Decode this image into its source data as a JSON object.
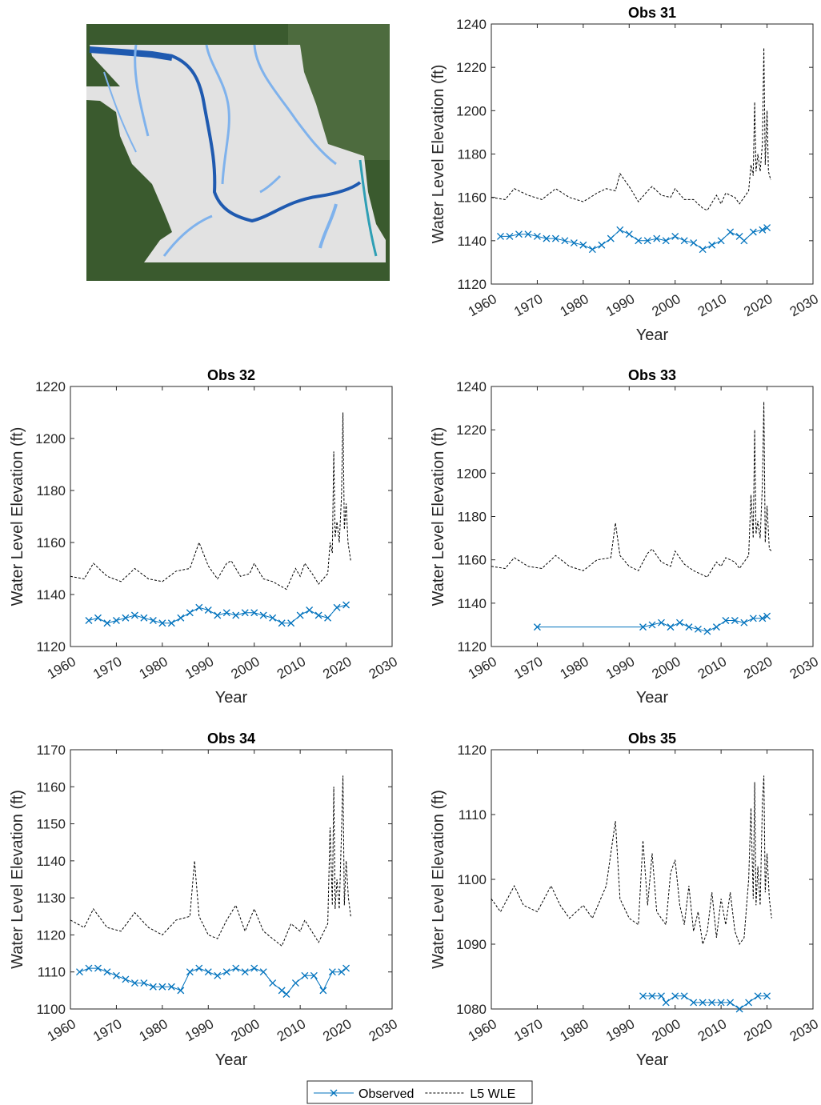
{
  "chart_data": [
    {
      "type": "line",
      "title": "Obs 31",
      "x_label": "Year",
      "y_label": "Water Level Elevation (ft)",
      "xlim": [
        1960,
        2030
      ],
      "xticks": [
        1960,
        1970,
        1980,
        1990,
        2000,
        2010,
        2020,
        2030
      ],
      "ylim": [
        1120,
        1240
      ],
      "yticks": [
        1120,
        1140,
        1160,
        1180,
        1200,
        1220,
        1240
      ],
      "series": [
        {
          "name": "Observed",
          "color": "#0072bd",
          "linestyle": "solid",
          "marker": "x",
          "x": [
            1962,
            1964,
            1966,
            1968,
            1970,
            1972,
            1974,
            1976,
            1978,
            1980,
            1982,
            1984,
            1986,
            1988,
            1990,
            1992,
            1994,
            1996,
            1998,
            2000,
            2002,
            2004,
            2006,
            2008,
            2010,
            2012,
            2014,
            2015,
            2017,
            2019,
            2020
          ],
          "values": [
            1142,
            1142,
            1143,
            1143,
            1142,
            1141,
            1141,
            1140,
            1139,
            1138,
            1136,
            1138,
            1141,
            1145,
            1143,
            1140,
            1140,
            1141,
            1140,
            1142,
            1140,
            1139,
            1136,
            1138,
            1140,
            1144,
            1142,
            1140,
            1144,
            1145,
            1146
          ]
        },
        {
          "name": "L5 WLE",
          "color": "#000000",
          "linestyle": "dashed",
          "marker": "none",
          "x": [
            1960,
            1963,
            1965,
            1968,
            1971,
            1974,
            1977,
            1980,
            1983,
            1985,
            1987,
            1988,
            1990,
            1992,
            1994,
            1995,
            1997,
            1999,
            2000,
            2002,
            2004,
            2006,
            2007,
            2009,
            2010,
            2011,
            2013,
            2014,
            2016,
            2016.5,
            2017,
            2017.3,
            2017.6,
            2018,
            2018.5,
            2019,
            2019.3,
            2019.6,
            2020,
            2020.3,
            2020.8
          ],
          "values": [
            1160,
            1159,
            1164,
            1161,
            1159,
            1164,
            1160,
            1158,
            1162,
            1164,
            1163,
            1171,
            1165,
            1158,
            1163,
            1165,
            1161,
            1160,
            1164,
            1159,
            1159,
            1155,
            1154,
            1161,
            1157,
            1162,
            1160,
            1157,
            1163,
            1175,
            1170,
            1204,
            1172,
            1180,
            1172,
            1185,
            1229,
            1175,
            1200,
            1172,
            1168
          ]
        }
      ]
    },
    {
      "type": "line",
      "title": "Obs 32",
      "x_label": "Year",
      "y_label": "Water Level Elevation (ft)",
      "xlim": [
        1960,
        2030
      ],
      "xticks": [
        1960,
        1970,
        1980,
        1990,
        2000,
        2010,
        2020,
        2030
      ],
      "ylim": [
        1120,
        1220
      ],
      "yticks": [
        1120,
        1140,
        1160,
        1180,
        1200,
        1220
      ],
      "series": [
        {
          "name": "Observed",
          "color": "#0072bd",
          "linestyle": "solid",
          "marker": "x",
          "x": [
            1964,
            1966,
            1968,
            1970,
            1972,
            1974,
            1976,
            1978,
            1980,
            1982,
            1984,
            1986,
            1988,
            1990,
            1992,
            1994,
            1996,
            1998,
            2000,
            2002,
            2004,
            2006,
            2008,
            2010,
            2012,
            2014,
            2016,
            2018,
            2020
          ],
          "values": [
            1130,
            1131,
            1129,
            1130,
            1131,
            1132,
            1131,
            1130,
            1129,
            1129,
            1131,
            1133,
            1135,
            1134,
            1132,
            1133,
            1132,
            1133,
            1133,
            1132,
            1131,
            1129,
            1129,
            1132,
            1134,
            1132,
            1131,
            1135,
            1136
          ]
        },
        {
          "name": "L5 WLE",
          "color": "#000000",
          "linestyle": "dashed",
          "marker": "none",
          "x": [
            1960,
            1963,
            1965,
            1968,
            1971,
            1974,
            1977,
            1980,
            1983,
            1986,
            1988,
            1990,
            1992,
            1994,
            1995,
            1997,
            1999,
            2000,
            2002,
            2004,
            2006,
            2007,
            2009,
            2010,
            2011,
            2013,
            2014,
            2016,
            2016.5,
            2017,
            2017.3,
            2017.6,
            2018,
            2018.5,
            2019,
            2019.3,
            2019.6,
            2020,
            2020.4,
            2021
          ],
          "values": [
            1147,
            1146,
            1152,
            1147,
            1145,
            1150,
            1146,
            1145,
            1149,
            1150,
            1160,
            1151,
            1146,
            1152,
            1153,
            1147,
            1148,
            1152,
            1146,
            1145,
            1143,
            1142,
            1150,
            1147,
            1152,
            1147,
            1144,
            1148,
            1160,
            1156,
            1195,
            1162,
            1168,
            1160,
            1178,
            1210,
            1165,
            1175,
            1160,
            1153
          ]
        }
      ]
    },
    {
      "type": "line",
      "title": "Obs 33",
      "x_label": "Year",
      "y_label": "Water Level Elevation (ft)",
      "xlim": [
        1960,
        2030
      ],
      "xticks": [
        1960,
        1970,
        1980,
        1990,
        2000,
        2010,
        2020,
        2030
      ],
      "ylim": [
        1120,
        1240
      ],
      "yticks": [
        1120,
        1140,
        1160,
        1180,
        1200,
        1220,
        1240
      ],
      "series": [
        {
          "name": "Observed",
          "color": "#0072bd",
          "linestyle": "solid",
          "marker": "x",
          "x": [
            1970,
            1993,
            1995,
            1997,
            1999,
            2001,
            2003,
            2005,
            2007,
            2009,
            2011,
            2013,
            2015,
            2017,
            2019,
            2020
          ],
          "values": [
            1129,
            1129,
            1130,
            1131,
            1129,
            1131,
            1129,
            1128,
            1127,
            1129,
            1132,
            1132,
            1131,
            1133,
            1133,
            1134
          ]
        },
        {
          "name": "L5 WLE",
          "color": "#000000",
          "linestyle": "dashed",
          "marker": "none",
          "x": [
            1960,
            1963,
            1965,
            1968,
            1971,
            1974,
            1977,
            1980,
            1983,
            1986,
            1987,
            1988,
            1990,
            1992,
            1994,
            1995,
            1997,
            1999,
            2000,
            2002,
            2004,
            2006,
            2007,
            2009,
            2010,
            2011,
            2013,
            2014,
            2016,
            2016.5,
            2017,
            2017.3,
            2017.6,
            2018,
            2018.5,
            2019,
            2019.3,
            2019.6,
            2020,
            2020.5,
            2021
          ],
          "values": [
            1157,
            1156,
            1161,
            1157,
            1156,
            1162,
            1157,
            1155,
            1160,
            1161,
            1177,
            1162,
            1157,
            1155,
            1163,
            1165,
            1159,
            1157,
            1164,
            1158,
            1155,
            1153,
            1152,
            1159,
            1157,
            1161,
            1159,
            1156,
            1162,
            1190,
            1170,
            1220,
            1172,
            1178,
            1170,
            1195,
            1233,
            1168,
            1185,
            1165,
            1164
          ]
        }
      ]
    },
    {
      "type": "line",
      "title": "Obs 34",
      "x_label": "Year",
      "y_label": "Water Level Elevation (ft)",
      "xlim": [
        1960,
        2030
      ],
      "xticks": [
        1960,
        1970,
        1980,
        1990,
        2000,
        2010,
        2020,
        2030
      ],
      "ylim": [
        1100,
        1170
      ],
      "yticks": [
        1100,
        1110,
        1120,
        1130,
        1140,
        1150,
        1160,
        1170
      ],
      "series": [
        {
          "name": "Observed",
          "color": "#0072bd",
          "linestyle": "solid",
          "marker": "x",
          "x": [
            1962,
            1964,
            1966,
            1968,
            1970,
            1972,
            1974,
            1976,
            1978,
            1980,
            1982,
            1984,
            1986,
            1988,
            1990,
            1992,
            1994,
            1996,
            1998,
            2000,
            2002,
            2004,
            2006,
            2007,
            2009,
            2011,
            2013,
            2015,
            2017,
            2019,
            2020
          ],
          "values": [
            1110,
            1111,
            1111,
            1110,
            1109,
            1108,
            1107,
            1107,
            1106,
            1106,
            1106,
            1105,
            1110,
            1111,
            1110,
            1109,
            1110,
            1111,
            1110,
            1111,
            1110,
            1107,
            1105,
            1104,
            1107,
            1109,
            1109,
            1105,
            1110,
            1110,
            1111
          ]
        },
        {
          "name": "L5 WLE",
          "color": "#000000",
          "linestyle": "dashed",
          "marker": "none",
          "x": [
            1960,
            1963,
            1965,
            1968,
            1971,
            1974,
            1977,
            1980,
            1983,
            1986,
            1987,
            1988,
            1990,
            1992,
            1994,
            1996,
            1998,
            2000,
            2002,
            2004,
            2006,
            2008,
            2010,
            2011,
            2013,
            2014,
            2016,
            2016.5,
            2017,
            2017.3,
            2017.6,
            2018,
            2018.5,
            2019,
            2019.3,
            2019.6,
            2020,
            2020.5,
            2021
          ],
          "values": [
            1124,
            1122,
            1127,
            1122,
            1121,
            1126,
            1122,
            1120,
            1124,
            1125,
            1140,
            1125,
            1120,
            1119,
            1124,
            1128,
            1121,
            1127,
            1121,
            1119,
            1117,
            1123,
            1121,
            1124,
            1120,
            1118,
            1123,
            1149,
            1128,
            1160,
            1127,
            1135,
            1127,
            1148,
            1163,
            1128,
            1140,
            1130,
            1125
          ]
        }
      ]
    },
    {
      "type": "line",
      "title": "Obs 35",
      "x_label": "Year",
      "y_label": "Water Level Elevation (ft)",
      "xlim": [
        1960,
        2030
      ],
      "xticks": [
        1960,
        1970,
        1980,
        1990,
        2000,
        2010,
        2020,
        2030
      ],
      "ylim": [
        1080,
        1120
      ],
      "yticks": [
        1080,
        1090,
        1100,
        1110,
        1120
      ],
      "series": [
        {
          "name": "Observed",
          "color": "#0072bd",
          "linestyle": "solid",
          "marker": "x",
          "x": [
            1993,
            1995,
            1997,
            1998,
            2000,
            2002,
            2004,
            2006,
            2008,
            2010,
            2012,
            2014,
            2016,
            2018,
            2020
          ],
          "values": [
            1082,
            1082,
            1082,
            1081,
            1082,
            1082,
            1081,
            1081,
            1081,
            1081,
            1081,
            1080,
            1081,
            1082,
            1082
          ]
        },
        {
          "name": "L5 WLE",
          "color": "#000000",
          "linestyle": "dashed",
          "marker": "none",
          "x": [
            1960,
            1962,
            1965,
            1967,
            1970,
            1973,
            1975,
            1977,
            1980,
            1982,
            1985,
            1987,
            1988,
            1990,
            1992,
            1993,
            1994,
            1995,
            1996,
            1998,
            1999,
            2000,
            2001,
            2002,
            2003,
            2004,
            2005,
            2006,
            2007,
            2008,
            2009,
            2010,
            2011,
            2012,
            2013,
            2014,
            2015,
            2016,
            2016.5,
            2017,
            2017.3,
            2017.6,
            2018,
            2018.5,
            2019,
            2019.3,
            2019.6,
            2020,
            2020.5,
            2021
          ],
          "values": [
            1097,
            1095,
            1099,
            1096,
            1095,
            1099,
            1096,
            1094,
            1096,
            1094,
            1099,
            1109,
            1097,
            1094,
            1093,
            1106,
            1096,
            1104,
            1095,
            1093,
            1101,
            1103,
            1096,
            1093,
            1099,
            1092,
            1095,
            1090,
            1092,
            1098,
            1091,
            1097,
            1093,
            1098,
            1092,
            1090,
            1091,
            1100,
            1111,
            1097,
            1115,
            1096,
            1102,
            1096,
            1112,
            1116,
            1098,
            1104,
            1097,
            1094
          ]
        }
      ]
    }
  ]
}
